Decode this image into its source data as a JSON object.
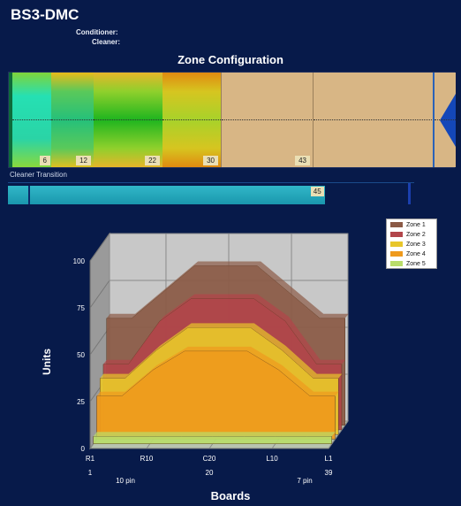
{
  "app_title": "BS3-DMC",
  "meta": {
    "conditioner_label": "Conditioner:",
    "cleaner_label": "Cleaner:"
  },
  "zone_config": {
    "title": "Zone Configuration",
    "zones": [
      {
        "label": "6"
      },
      {
        "label": "12"
      },
      {
        "label": "22"
      },
      {
        "label": "30"
      },
      {
        "label": "43"
      },
      {
        "label": ""
      },
      {
        "label": ""
      }
    ]
  },
  "cleaner_transition": {
    "label": "Cleaner Transition",
    "value_label": "45",
    "fill_fraction": 0.78
  },
  "legend": {
    "items": [
      {
        "name": "Zone 1",
        "color": "#8b5a46"
      },
      {
        "name": "Zone 2",
        "color": "#b2454a"
      },
      {
        "name": "Zone 3",
        "color": "#e8c62a"
      },
      {
        "name": "Zone 4",
        "color": "#ef9a1c"
      },
      {
        "name": "Zone 5",
        "color": "#b9dd6a"
      }
    ]
  },
  "chart_data": {
    "type": "area",
    "xlabel": "Boards",
    "ylabel": "Units",
    "ylim": [
      0,
      100
    ],
    "y_ticks": [
      "0",
      "25",
      "50",
      "75",
      "100"
    ],
    "x_tick_names": [
      "R1",
      "R10",
      "C20",
      "L10",
      "L1"
    ],
    "x_tick_numbers": [
      "1",
      "",
      "20",
      "",
      "39"
    ],
    "x_subnotes": [
      "10 pin",
      "7 pin"
    ],
    "x": [
      1,
      5,
      10,
      15,
      20,
      25,
      30,
      35,
      39
    ],
    "series": [
      {
        "name": "Zone 1",
        "values": [
          57,
          57,
          71,
          85,
          85,
          85,
          71,
          57,
          57
        ]
      },
      {
        "name": "Zone 2",
        "values": [
          35,
          35,
          58,
          70,
          70,
          70,
          58,
          35,
          35
        ]
      },
      {
        "name": "Zone 3",
        "values": [
          30,
          30,
          45,
          57,
          57,
          57,
          45,
          30,
          30
        ]
      },
      {
        "name": "Zone 4",
        "values": [
          23,
          23,
          37,
          47,
          47,
          47,
          37,
          23,
          23
        ]
      },
      {
        "name": "Zone 5",
        "values": [
          4,
          4,
          4,
          4,
          4,
          4,
          4,
          4,
          4
        ]
      }
    ],
    "grid": true,
    "legend_position": "top-right"
  }
}
